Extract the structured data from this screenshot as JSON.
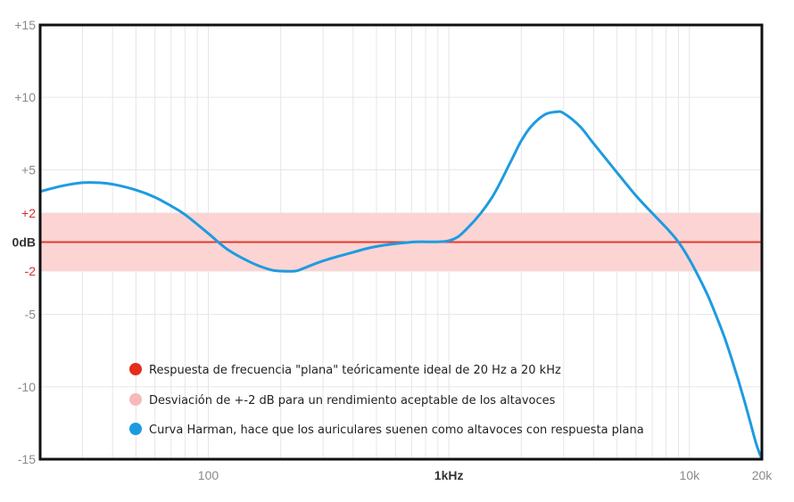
{
  "chart_data": {
    "type": "line",
    "title": "",
    "xlabel": "",
    "ylabel": "",
    "x_scale": "log",
    "xlim": [
      20,
      20000
    ],
    "ylim": [
      -15,
      15
    ],
    "grid": true,
    "y_ticks": [
      {
        "value": 15,
        "label": "+15",
        "style": "normal"
      },
      {
        "value": 10,
        "label": "+10",
        "style": "normal"
      },
      {
        "value": 5,
        "label": "+5",
        "style": "normal"
      },
      {
        "value": 2,
        "label": "+2",
        "style": "red"
      },
      {
        "value": 0,
        "label": "0dB",
        "style": "zero"
      },
      {
        "value": -2,
        "label": "-2",
        "style": "red"
      },
      {
        "value": -5,
        "label": "-5",
        "style": "normal"
      },
      {
        "value": -10,
        "label": "-10",
        "style": "normal"
      },
      {
        "value": -15,
        "label": "-15",
        "style": "normal"
      }
    ],
    "x_ticks": [
      {
        "value": 100,
        "label": "100",
        "style": "normal"
      },
      {
        "value": 1000,
        "label": "1kHz",
        "style": "bold"
      },
      {
        "value": 10000,
        "label": "10k",
        "style": "normal"
      },
      {
        "value": 20000,
        "label": "20k",
        "style": "normal"
      }
    ],
    "band": {
      "low": -2,
      "high": 2,
      "color": "#fcd4d4"
    },
    "flat_line": {
      "value": 0,
      "color": "#e23b2e"
    },
    "harman_curve": {
      "color": "#1e9be0",
      "x": [
        20,
        25,
        30,
        35,
        40,
        50,
        60,
        70,
        80,
        100,
        120,
        150,
        180,
        200,
        230,
        250,
        300,
        400,
        500,
        700,
        1000,
        1200,
        1500,
        1800,
        2000,
        2200,
        2500,
        2800,
        3000,
        3500,
        4000,
        5000,
        6000,
        7000,
        8000,
        9000,
        10000,
        11000,
        12000,
        13000,
        14000,
        15000,
        16000,
        17000,
        18000,
        19000,
        20000
      ],
      "y": [
        3.5,
        3.9,
        4.1,
        4.1,
        4.0,
        3.6,
        3.1,
        2.5,
        1.9,
        0.6,
        -0.5,
        -1.4,
        -1.9,
        -2.0,
        -2.0,
        -1.8,
        -1.3,
        -0.7,
        -0.3,
        0.0,
        0.1,
        1.0,
        3.0,
        5.5,
        7.0,
        8.0,
        8.8,
        9.0,
        8.9,
        8.0,
        6.8,
        4.8,
        3.2,
        2.0,
        1.0,
        0.0,
        -1.2,
        -2.5,
        -3.8,
        -5.2,
        -6.6,
        -8.1,
        -9.6,
        -11.1,
        -12.6,
        -14.0,
        -15.0
      ]
    },
    "legend": {
      "placement": "bottom-center",
      "items": [
        {
          "label": "Respuesta de frecuencia \"plana\" teóricamente ideal de 20 Hz a 20 kHz",
          "color": "#e42d1c"
        },
        {
          "label": "Desviación de +-2 dB para un rendimiento aceptable de los altavoces",
          "color": "#f7b9b9"
        },
        {
          "label": "Curva Harman, hace que los auriculares suenen como altavoces con respuesta plana",
          "color": "#1e9be0"
        }
      ]
    }
  }
}
